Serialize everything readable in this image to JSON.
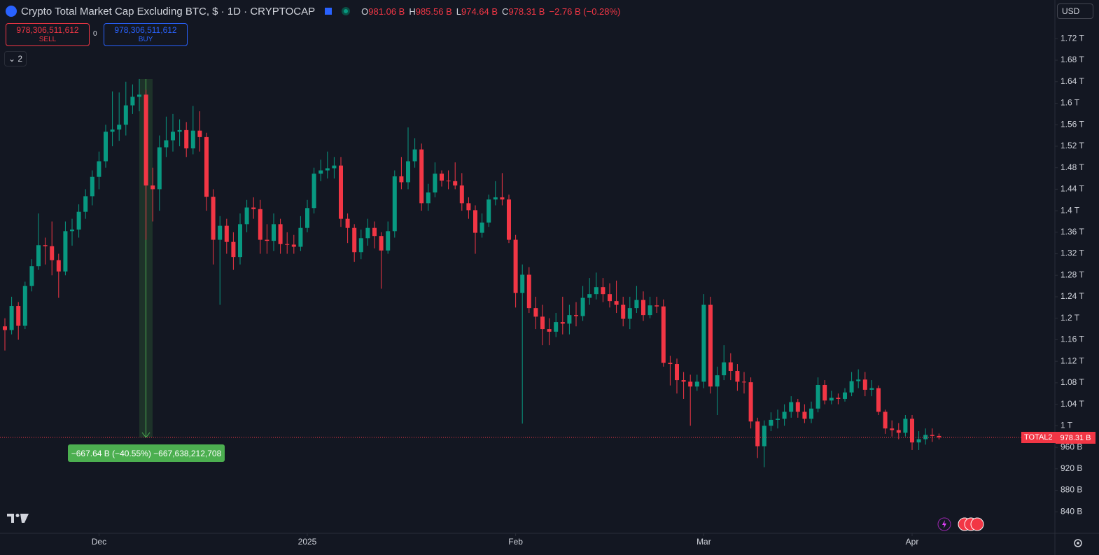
{
  "header": {
    "title": "Crypto Total Market Cap Excluding BTC, $ · 1D · CRYPTOCAP",
    "ohlc": [
      {
        "key": "O",
        "value": "981.06 B"
      },
      {
        "key": "H",
        "value": "985.56 B"
      },
      {
        "key": "L",
        "value": "974.64 B"
      },
      {
        "key": "C",
        "value": "978.31 B"
      }
    ],
    "change": "−2.76 B (−0.28%)"
  },
  "trading": {
    "sell_price": "978,306,511,612",
    "sell": "SELL",
    "spread": "0",
    "buy_price": "978,306,511,612",
    "buy": "BUY",
    "indicators_count": "2",
    "currency": "USD"
  },
  "measure_label": "−667.64 B (−40.55%) −667,638,212,708",
  "chart_data": {
    "type": "candlestick",
    "up_color": "#089981",
    "down_color": "#f23645",
    "open": [
      1185,
      1178,
      1223,
      1186,
      1260,
      1297,
      1336,
      1334,
      1308,
      1287,
      1362,
      1365,
      1398,
      1427,
      1463,
      1492,
      1547,
      1551,
      1560,
      1596,
      1612,
      1616,
      1447,
      1440,
      1518,
      1531,
      1547,
      1550,
      1516,
      1549,
      1537,
      1426,
      1346,
      1372,
      1342,
      1314,
      1375,
      1406,
      1403,
      1346,
      1344,
      1375,
      1338,
      1337,
      1333,
      1368,
      1405,
      1469,
      1475,
      1479,
      1484,
      1385,
      1368,
      1323,
      1349,
      1368,
      1353,
      1326,
      1362,
      1464,
      1453,
      1492,
      1514,
      1414,
      1434,
      1469,
      1456,
      1455,
      1447,
      1414,
      1401,
      1359,
      1378,
      1421,
      1425,
      1421,
      1346,
      1247,
      1281,
      1219,
      1203,
      1180,
      1175,
      1193,
      1190,
      1206,
      1204,
      1238,
      1245,
      1258,
      1245,
      1232,
      1225,
      1199,
      1219,
      1234,
      1206,
      1224,
      1222,
      1117,
      1115,
      1085,
      1082,
      1073,
      1082,
      1225,
      1073,
      1094,
      1118,
      1102,
      1082,
      1081,
      1008,
      962,
      1000,
      1011,
      1013,
      1026,
      1044,
      1026,
      1013,
      1032,
      1076,
      1047,
      1052,
      1050,
      1062,
      1083,
      1086,
      1067,
      1070,
      1026,
      995,
      992,
      987,
      1013,
      969,
      975,
      983,
      981.06
    ],
    "high": [
      1200,
      1240,
      1230,
      1268,
      1310,
      1395,
      1350,
      1380,
      1320,
      1380,
      1385,
      1412,
      1440,
      1475,
      1510,
      1560,
      1622,
      1620,
      1640,
      1635,
      1645,
      1625,
      1480,
      1540,
      1575,
      1580,
      1570,
      1565,
      1595,
      1585,
      1545,
      1440,
      1390,
      1385,
      1360,
      1395,
      1420,
      1425,
      1420,
      1375,
      1395,
      1385,
      1360,
      1355,
      1390,
      1420,
      1480,
      1495,
      1510,
      1500,
      1500,
      1395,
      1375,
      1365,
      1385,
      1380,
      1360,
      1380,
      1475,
      1500,
      1555,
      1535,
      1525,
      1450,
      1490,
      1475,
      1475,
      1490,
      1470,
      1425,
      1410,
      1395,
      1430,
      1455,
      1470,
      1430,
      1355,
      1300,
      1295,
      1240,
      1225,
      1200,
      1210,
      1240,
      1225,
      1230,
      1260,
      1275,
      1285,
      1275,
      1265,
      1270,
      1240,
      1240,
      1260,
      1250,
      1240,
      1240,
      1235,
      1130,
      1125,
      1100,
      1095,
      1095,
      1245,
      1240,
      1110,
      1150,
      1135,
      1115,
      1100,
      1090,
      1015,
      1010,
      1025,
      1030,
      1040,
      1055,
      1050,
      1040,
      1045,
      1090,
      1085,
      1065,
      1060,
      1070,
      1100,
      1105,
      1100,
      1085,
      1075,
      1030,
      1010,
      1005,
      1020,
      1020,
      990,
      995,
      995,
      985.56
    ],
    "low": [
      1140,
      1170,
      1160,
      1180,
      1250,
      1290,
      1300,
      1280,
      1238,
      1280,
      1335,
      1350,
      1385,
      1410,
      1440,
      1480,
      1520,
      1530,
      1540,
      1580,
      1585,
      1346,
      1380,
      1400,
      1500,
      1510,
      1520,
      1500,
      1505,
      1510,
      1400,
      1300,
      1225,
      1320,
      1290,
      1300,
      1360,
      1385,
      1320,
      1320,
      1325,
      1320,
      1320,
      1320,
      1325,
      1360,
      1395,
      1455,
      1460,
      1460,
      1370,
      1340,
      1305,
      1310,
      1335,
      1330,
      1255,
      1320,
      1350,
      1440,
      1440,
      1480,
      1400,
      1400,
      1425,
      1445,
      1440,
      1440,
      1400,
      1385,
      1320,
      1350,
      1370,
      1410,
      1410,
      1340,
      1220,
      1004,
      1210,
      1180,
      1150,
      1150,
      1165,
      1170,
      1170,
      1185,
      1195,
      1225,
      1235,
      1230,
      1220,
      1210,
      1185,
      1180,
      1210,
      1195,
      1200,
      1210,
      1110,
      1075,
      1060,
      1050,
      1000,
      1065,
      1070,
      1060,
      1020,
      1085,
      1085,
      1065,
      1060,
      995,
      940,
      923,
      990,
      995,
      1000,
      1015,
      1015,
      1005,
      1005,
      1025,
      1040,
      1040,
      1040,
      1045,
      1055,
      1070,
      1055,
      1055,
      1020,
      985,
      980,
      975,
      980,
      955,
      955,
      965,
      970,
      974.64
    ],
    "close": [
      1178,
      1223,
      1186,
      1260,
      1297,
      1336,
      1334,
      1308,
      1287,
      1362,
      1365,
      1398,
      1427,
      1463,
      1492,
      1547,
      1551,
      1560,
      1596,
      1612,
      1616,
      1447,
      1440,
      1518,
      1531,
      1547,
      1550,
      1516,
      1549,
      1537,
      1426,
      1346,
      1372,
      1342,
      1314,
      1375,
      1406,
      1403,
      1346,
      1344,
      1375,
      1338,
      1337,
      1333,
      1368,
      1405,
      1469,
      1475,
      1479,
      1484,
      1385,
      1368,
      1323,
      1349,
      1368,
      1353,
      1326,
      1362,
      1464,
      1453,
      1492,
      1514,
      1414,
      1434,
      1469,
      1456,
      1455,
      1447,
      1414,
      1401,
      1359,
      1378,
      1421,
      1425,
      1421,
      1346,
      1247,
      1281,
      1219,
      1203,
      1180,
      1175,
      1193,
      1190,
      1206,
      1204,
      1238,
      1245,
      1258,
      1245,
      1232,
      1225,
      1199,
      1219,
      1234,
      1206,
      1224,
      1222,
      1117,
      1115,
      1085,
      1082,
      1073,
      1082,
      1225,
      1073,
      1094,
      1118,
      1102,
      1082,
      1081,
      1008,
      962,
      1000,
      1011,
      1013,
      1026,
      1044,
      1026,
      1013,
      1032,
      1076,
      1047,
      1052,
      1050,
      1062,
      1083,
      1086,
      1067,
      1070,
      1026,
      995,
      992,
      987,
      1013,
      969,
      975,
      983,
      981.06,
      978.31
    ],
    "xlim": [
      -0.73,
      156.25
    ],
    "xticks": [
      {
        "value": 14,
        "label": "Dec"
      },
      {
        "value": 45,
        "label": "2025"
      },
      {
        "value": 76,
        "label": "Feb"
      },
      {
        "value": 104,
        "label": "Mar"
      },
      {
        "value": 135,
        "label": "Apr"
      }
    ],
    "ylim": [
      800,
      1792
    ],
    "yticks": [
      {
        "value": 840,
        "label": "840 B"
      },
      {
        "value": 880,
        "label": "880 B"
      },
      {
        "value": 920,
        "label": "920 B"
      },
      {
        "value": 960,
        "label": "960 B"
      },
      {
        "value": 1000,
        "label": "1 T"
      },
      {
        "value": 1040,
        "label": "1.04 T"
      },
      {
        "value": 1080,
        "label": "1.08 T"
      },
      {
        "value": 1120,
        "label": "1.12 T"
      },
      {
        "value": 1160,
        "label": "1.16 T"
      },
      {
        "value": 1200,
        "label": "1.2 T"
      },
      {
        "value": 1240,
        "label": "1.24 T"
      },
      {
        "value": 1280,
        "label": "1.28 T"
      },
      {
        "value": 1320,
        "label": "1.32 T"
      },
      {
        "value": 1360,
        "label": "1.36 T"
      },
      {
        "value": 1400,
        "label": "1.4 T"
      },
      {
        "value": 1440,
        "label": "1.44 T"
      },
      {
        "value": 1480,
        "label": "1.48 T"
      },
      {
        "value": 1520,
        "label": "1.52 T"
      },
      {
        "value": 1560,
        "label": "1.56 T"
      },
      {
        "value": 1600,
        "label": "1.6 T"
      },
      {
        "value": 1640,
        "label": "1.64 T"
      },
      {
        "value": 1680,
        "label": "1.68 T"
      },
      {
        "value": 1720,
        "label": "1.72 T"
      }
    ],
    "grid": false,
    "symbol_label": "TOTAL2",
    "last_close_label": "978.31 B"
  }
}
